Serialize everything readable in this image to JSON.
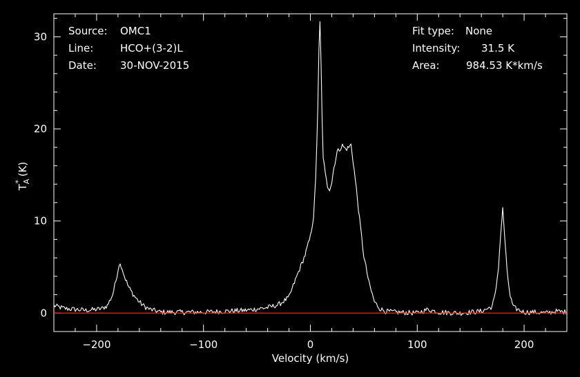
{
  "header": {
    "left": [
      {
        "label": "Source:",
        "value": "OMC1"
      },
      {
        "label": "Line:",
        "value": "HCO+(3-2)L"
      },
      {
        "label": "Date:",
        "value": "30-NOV-2015"
      }
    ],
    "right": [
      {
        "label": "Fit type:",
        "value": "None"
      },
      {
        "label": "Intensity:",
        "value": "31.5 K"
      },
      {
        "label": "Area:",
        "value": "984.53 K*km/s"
      }
    ]
  },
  "chart_data": {
    "type": "line",
    "xlabel": "Velocity (km/s)",
    "ylabel": "T_A^* (K)",
    "xlim": [
      -240,
      240
    ],
    "ylim": [
      -2,
      32.5
    ],
    "xticks": [
      -200,
      -100,
      0,
      100,
      200
    ],
    "yticks": [
      0,
      10,
      20,
      30
    ],
    "baseline": 0,
    "colors": {
      "spectrum": "#ffffff",
      "baseline": "#ff2020",
      "axes": "#ffffff"
    },
    "series": [
      {
        "x": [
          -240,
          -230,
          -220,
          -210,
          -200,
          -195,
          -190,
          -185,
          -182,
          -179,
          -177,
          -174,
          -170,
          -165,
          -160,
          -155,
          -150,
          -140,
          -120,
          -100,
          -80,
          -60,
          -40,
          -30,
          -20,
          -15,
          -10,
          -5,
          0,
          3,
          5,
          7,
          8,
          9,
          10,
          11,
          12,
          14,
          16,
          18,
          20,
          22,
          25,
          28,
          30,
          33,
          36,
          38,
          40,
          43,
          46,
          50,
          55,
          60,
          65,
          70,
          80,
          100,
          110,
          120,
          140,
          160,
          170,
          173,
          176,
          178,
          180,
          182,
          184,
          187,
          190,
          200,
          210,
          220,
          230,
          240
        ],
        "y": [
          0.8,
          0.5,
          0.4,
          0.3,
          0.4,
          0.5,
          0.8,
          2.0,
          3.5,
          5.3,
          5.2,
          4.0,
          2.8,
          1.9,
          1.2,
          0.7,
          0.4,
          0.1,
          0.1,
          0.1,
          0.2,
          0.3,
          0.6,
          0.9,
          1.7,
          3.3,
          4.8,
          6.3,
          8.3,
          10.5,
          14.5,
          22.5,
          28.5,
          31.5,
          27.0,
          21.0,
          17.0,
          15.0,
          13.8,
          13.5,
          14.2,
          15.8,
          17.5,
          17.9,
          18.2,
          17.8,
          18.0,
          18.3,
          16.5,
          13.5,
          10.2,
          6.2,
          3.2,
          1.2,
          0.5,
          0.2,
          0.1,
          0.0,
          0.4,
          0.1,
          0.0,
          0.2,
          0.7,
          2.0,
          5.0,
          8.5,
          11.3,
          8.0,
          4.5,
          1.8,
          0.6,
          0.1,
          0.1,
          0.0,
          0.2,
          0.1
        ]
      }
    ]
  }
}
